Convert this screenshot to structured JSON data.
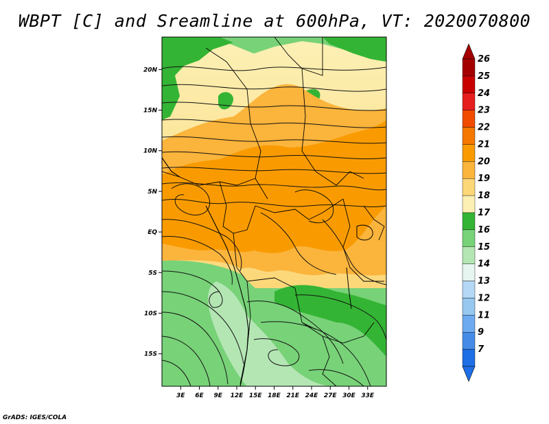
{
  "title": "WBPT [C] and Sreamline at 600hPa, VT: 2020070800",
  "footer": "GrADS: IGES/COLA",
  "map": {
    "region": "Central / Southern Africa",
    "lon_range": [
      0,
      36
    ],
    "lat_range": [
      -19,
      24
    ],
    "lat_ticks": [
      {
        "value": 20,
        "label": "20N"
      },
      {
        "value": 15,
        "label": "15N"
      },
      {
        "value": 10,
        "label": "10N"
      },
      {
        "value": 5,
        "label": "5N"
      },
      {
        "value": 0,
        "label": "EQ"
      },
      {
        "value": -5,
        "label": "5S"
      },
      {
        "value": -10,
        "label": "10S"
      },
      {
        "value": -15,
        "label": "15S"
      }
    ],
    "lon_ticks": [
      {
        "value": 3,
        "label": "3E"
      },
      {
        "value": 6,
        "label": "6E"
      },
      {
        "value": 9,
        "label": "9E"
      },
      {
        "value": 12,
        "label": "12E"
      },
      {
        "value": 15,
        "label": "15E"
      },
      {
        "value": 18,
        "label": "18E"
      },
      {
        "value": 21,
        "label": "21E"
      },
      {
        "value": 24,
        "label": "24E"
      },
      {
        "value": 27,
        "label": "27E"
      },
      {
        "value": 30,
        "label": "30E"
      },
      {
        "value": 33,
        "label": "33E"
      }
    ]
  },
  "colorbar": {
    "levels": [
      "26",
      "25",
      "24",
      "23",
      "22",
      "21",
      "20",
      "19",
      "18",
      "17",
      "16",
      "15",
      "14",
      "13",
      "12",
      "11",
      "9",
      "7"
    ],
    "colors": [
      "#a50000",
      "#c80000",
      "#e61e1e",
      "#f04b00",
      "#f57800",
      "#f99b00",
      "#fbb43c",
      "#fcd778",
      "#fcf0b4",
      "#34b434",
      "#78d278",
      "#b4e6b4",
      "#e6f5f0",
      "#b4d7f5",
      "#96c8f0",
      "#6eaaf0",
      "#468ce6",
      "#1e6ee6"
    ],
    "top_color": "#a50000",
    "bottom_color": "#1e6ee6"
  }
}
